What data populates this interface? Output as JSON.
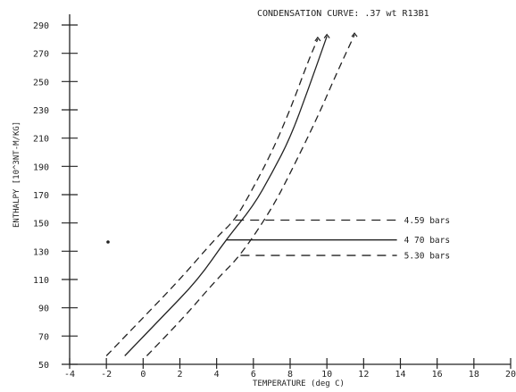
{
  "chart_data": {
    "type": "line",
    "title": "CONDENSATION CURVE: .37 wt R13B1",
    "xlabel": "TEMPERATURE (deg C)",
    "ylabel": "ENTHALPY [10^3NT-M/KG]",
    "xlim": [
      -4,
      20
    ],
    "ylim": [
      50,
      290
    ],
    "x_ticks": [
      -4,
      -2,
      0,
      2,
      4,
      6,
      8,
      10,
      12,
      14,
      16,
      18,
      20
    ],
    "x_tick_labels": [
      "-4",
      "-2",
      "0",
      "2",
      "4",
      "6",
      "8",
      "10",
      "12",
      "14",
      "16",
      "18",
      "20"
    ],
    "y_ticks": [
      50,
      70,
      90,
      110,
      130,
      150,
      170,
      190,
      210,
      230,
      250,
      270,
      290
    ],
    "y_tick_labels": [
      "50",
      "70",
      "90",
      "110",
      "130",
      "150",
      "170",
      "190",
      "210",
      "230",
      "250",
      "270",
      "290"
    ],
    "grid": false,
    "series": [
      {
        "name": "4.59 bars",
        "style": "dashed",
        "points": [
          [
            -2.0,
            56
          ],
          [
            0.0,
            83
          ],
          [
            2.0,
            110
          ],
          [
            4.0,
            140
          ],
          [
            5.0,
            152
          ],
          [
            6.0,
            175
          ],
          [
            7.0,
            200
          ],
          [
            8.0,
            230
          ],
          [
            9.0,
            265
          ],
          [
            9.5,
            280
          ]
        ],
        "level_y": 152
      },
      {
        "name": "4.70 bars",
        "style": "solid",
        "points": [
          [
            -1.0,
            56
          ],
          [
            1.0,
            83
          ],
          [
            3.0,
            110
          ],
          [
            4.5,
            138
          ],
          [
            6.0,
            162
          ],
          [
            7.0,
            185
          ],
          [
            8.0,
            210
          ],
          [
            9.0,
            245
          ],
          [
            10.0,
            282
          ]
        ],
        "level_y": 138
      },
      {
        "name": "5.30 bars",
        "style": "dashed",
        "points": [
          [
            0.2,
            56
          ],
          [
            2.2,
            83
          ],
          [
            4.0,
            110
          ],
          [
            5.3,
            127
          ],
          [
            7.0,
            160
          ],
          [
            8.0,
            185
          ],
          [
            9.5,
            225
          ],
          [
            10.5,
            255
          ],
          [
            11.5,
            283
          ]
        ],
        "level_y": 127
      }
    ],
    "labels": [
      "4.59 bars",
      "4.70 bars",
      "5.30 bars"
    ],
    "label_texts": [
      "4.59 bars",
      "4 70 bars",
      "5.30 bars"
    ]
  }
}
